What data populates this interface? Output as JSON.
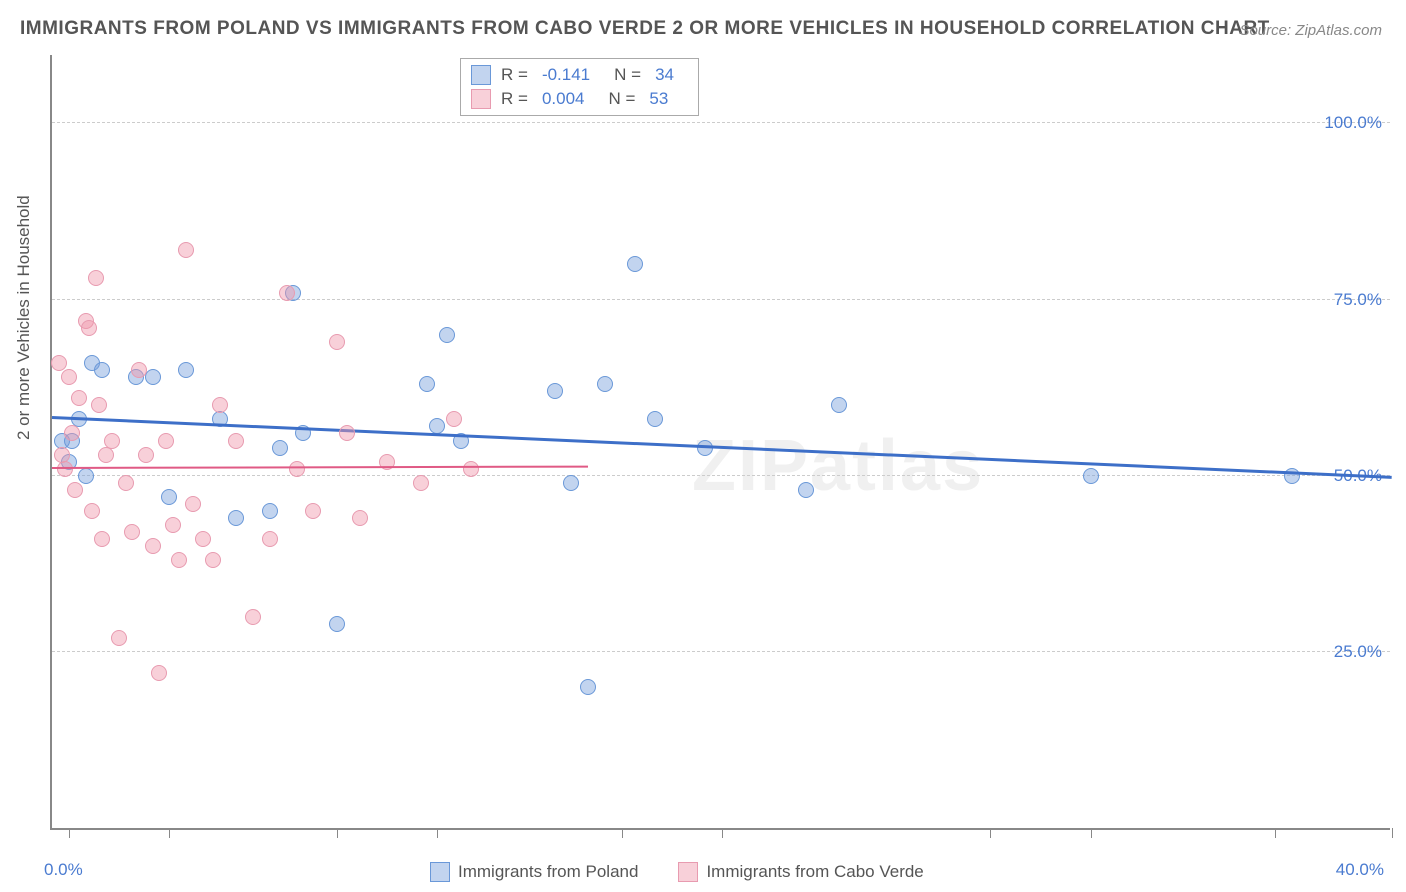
{
  "title": "IMMIGRANTS FROM POLAND VS IMMIGRANTS FROM CABO VERDE 2 OR MORE VEHICLES IN HOUSEHOLD CORRELATION CHART",
  "source": "Source: ZipAtlas.com",
  "ylabel": "2 or more Vehicles in Household",
  "watermark": "ZIPatlas",
  "chart": {
    "type": "scatter",
    "xlim": [
      0,
      40
    ],
    "ylim": [
      0,
      110
    ],
    "x_min_label": "0.0%",
    "x_max_label": "40.0%",
    "y_ticks": [
      25,
      50,
      75,
      100
    ],
    "y_tick_labels": [
      "25.0%",
      "50.0%",
      "75.0%",
      "100.0%"
    ],
    "x_tick_positions": [
      0.5,
      3.5,
      8.5,
      11.5,
      17,
      20,
      28,
      31,
      36.5,
      40
    ],
    "background_color": "#ffffff",
    "grid_color": "#cccccc",
    "axis_color": "#888888",
    "series": [
      {
        "name": "Immigrants from Poland",
        "fill_color": "rgba(120,160,220,0.45)",
        "stroke_color": "#6a98d8",
        "R": "-0.141",
        "N": "34",
        "trend": {
          "x1": 0,
          "y1": 58,
          "x2": 40,
          "y2": 49.5,
          "color": "#3d6fc8",
          "width": 3
        },
        "points": [
          [
            0.3,
            55
          ],
          [
            0.5,
            52
          ],
          [
            0.6,
            55
          ],
          [
            0.8,
            58
          ],
          [
            1.0,
            50
          ],
          [
            1.2,
            66
          ],
          [
            1.5,
            65
          ],
          [
            2.5,
            64
          ],
          [
            3.0,
            64
          ],
          [
            3.5,
            47
          ],
          [
            4.0,
            65
          ],
          [
            5.0,
            58
          ],
          [
            5.5,
            44
          ],
          [
            6.5,
            45
          ],
          [
            6.8,
            54
          ],
          [
            7.2,
            76
          ],
          [
            7.5,
            56
          ],
          [
            8.5,
            29
          ],
          [
            11.2,
            63
          ],
          [
            11.5,
            57
          ],
          [
            11.8,
            70
          ],
          [
            12.2,
            55
          ],
          [
            15.0,
            62
          ],
          [
            15.5,
            49
          ],
          [
            16.0,
            20
          ],
          [
            16.5,
            63
          ],
          [
            17.4,
            80
          ],
          [
            18.0,
            58
          ],
          [
            19.5,
            54
          ],
          [
            22.5,
            48
          ],
          [
            23.5,
            60
          ],
          [
            31.0,
            50
          ],
          [
            37.0,
            50
          ]
        ]
      },
      {
        "name": "Immigrants from Cabo Verde",
        "fill_color": "rgba(240,150,170,0.45)",
        "stroke_color": "#e89bb0",
        "R": "0.004",
        "N": "53",
        "trend": {
          "x1": 0,
          "y1": 51,
          "x2": 16,
          "y2": 51.2,
          "color": "#e05a85",
          "width": 2
        },
        "points": [
          [
            0.2,
            66
          ],
          [
            0.3,
            53
          ],
          [
            0.4,
            51
          ],
          [
            0.5,
            64
          ],
          [
            0.6,
            56
          ],
          [
            0.7,
            48
          ],
          [
            0.8,
            61
          ],
          [
            1.0,
            72
          ],
          [
            1.1,
            71
          ],
          [
            1.2,
            45
          ],
          [
            1.3,
            78
          ],
          [
            1.4,
            60
          ],
          [
            1.5,
            41
          ],
          [
            1.6,
            53
          ],
          [
            1.8,
            55
          ],
          [
            2.0,
            27
          ],
          [
            2.2,
            49
          ],
          [
            2.4,
            42
          ],
          [
            2.6,
            65
          ],
          [
            2.8,
            53
          ],
          [
            3.0,
            40
          ],
          [
            3.2,
            22
          ],
          [
            3.4,
            55
          ],
          [
            3.6,
            43
          ],
          [
            3.8,
            38
          ],
          [
            4.0,
            82
          ],
          [
            4.2,
            46
          ],
          [
            4.5,
            41
          ],
          [
            4.8,
            38
          ],
          [
            5.0,
            60
          ],
          [
            5.5,
            55
          ],
          [
            6.0,
            30
          ],
          [
            6.5,
            41
          ],
          [
            7.0,
            76
          ],
          [
            7.3,
            51
          ],
          [
            7.8,
            45
          ],
          [
            8.5,
            69
          ],
          [
            8.8,
            56
          ],
          [
            9.2,
            44
          ],
          [
            10.0,
            52
          ],
          [
            11.0,
            49
          ],
          [
            12.0,
            58
          ],
          [
            12.5,
            51
          ]
        ]
      }
    ]
  },
  "legend_bottom": [
    {
      "label": "Immigrants from Poland",
      "fill": "rgba(120,160,220,0.45)",
      "stroke": "#6a98d8"
    },
    {
      "label": "Immigrants from Cabo Verde",
      "fill": "rgba(240,150,170,0.45)",
      "stroke": "#e89bb0"
    }
  ]
}
